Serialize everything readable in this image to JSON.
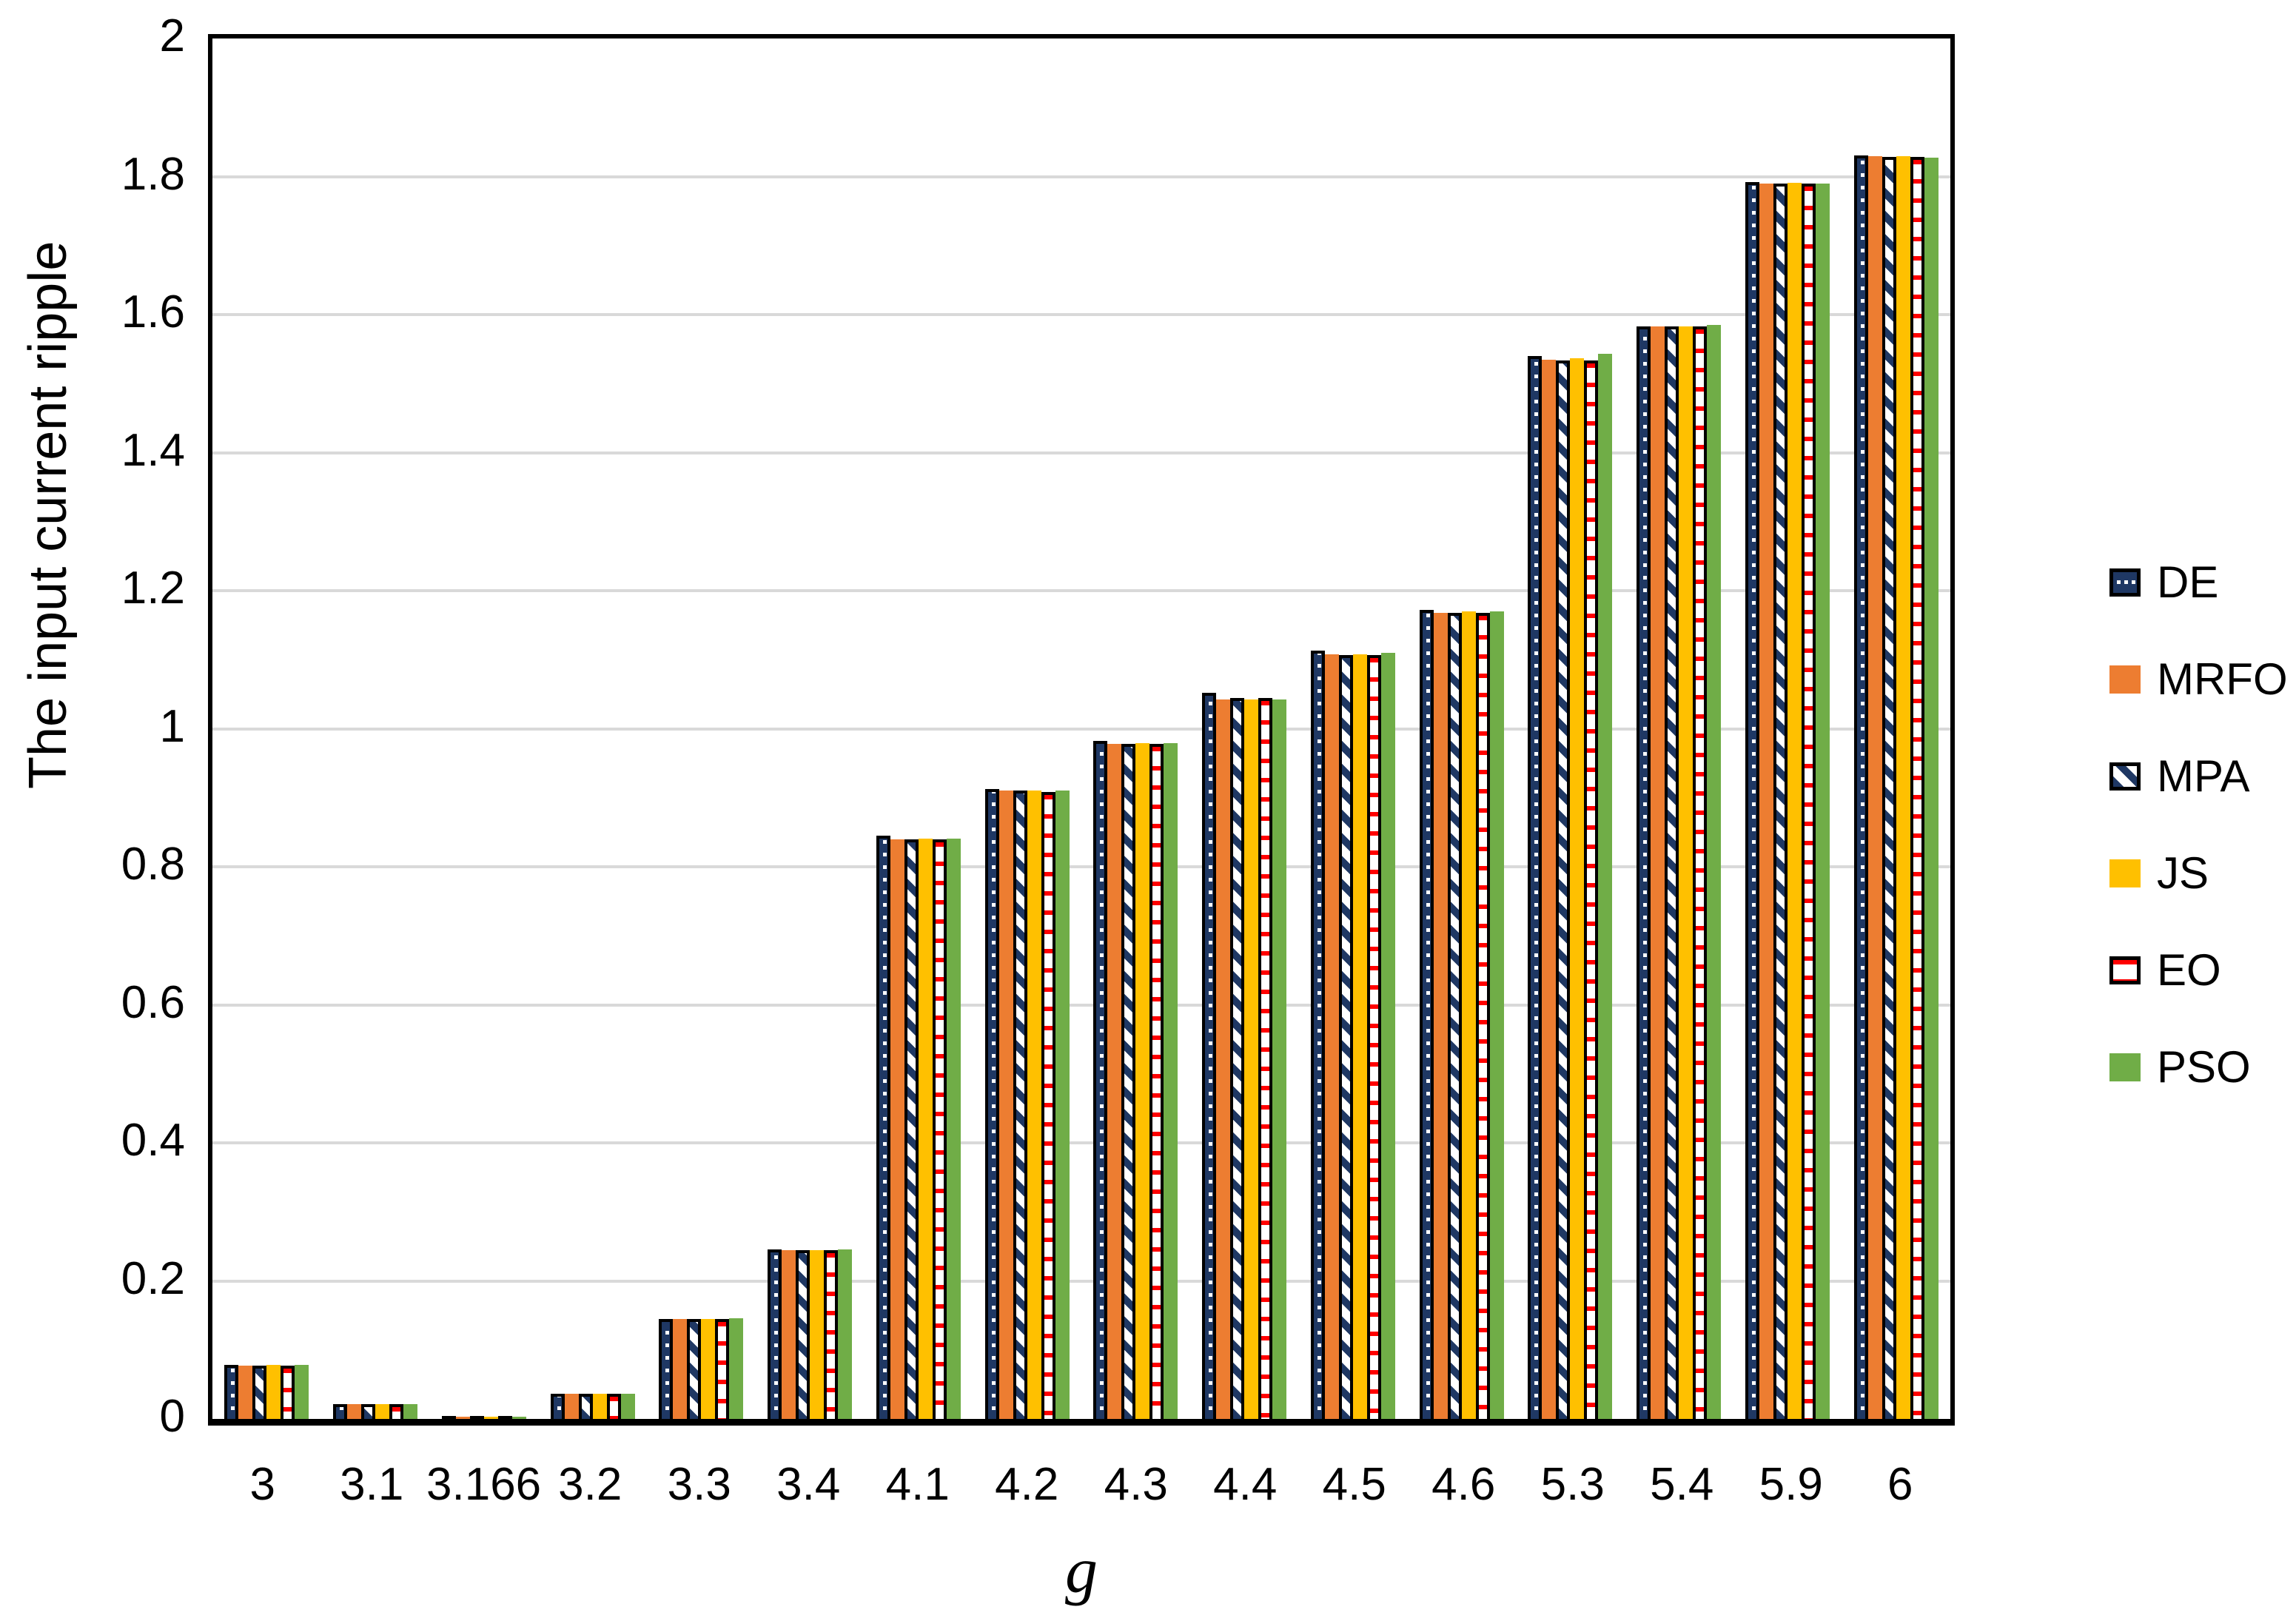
{
  "chart_data": {
    "type": "bar",
    "title": "",
    "xlabel": "g",
    "ylabel": "The input current ripple",
    "ylim": [
      0,
      2
    ],
    "ytick_step": 0.2,
    "grid": true,
    "legend_position": "right",
    "categories": [
      "3",
      "3.1",
      "3.166",
      "3.2",
      "3.3",
      "3.4",
      "4.1",
      "4.2",
      "4.3",
      "4.4",
      "4.5",
      "4.6",
      "5.3",
      "5.4",
      "5.9",
      "6"
    ],
    "series": [
      {
        "name": "DE",
        "style": "dots-navy",
        "color": "#1F3864",
        "border": "#000000",
        "values": [
          0.078,
          0.021,
          0.002,
          0.036,
          0.145,
          0.246,
          0.845,
          0.913,
          0.982,
          1.052,
          1.113,
          1.172,
          1.54,
          1.583,
          1.792,
          1.831
        ]
      },
      {
        "name": "MRFO",
        "style": "solid",
        "color": "#ED7D31",
        "border": null,
        "values": [
          0.077,
          0.021,
          0.002,
          0.036,
          0.145,
          0.245,
          0.84,
          0.91,
          0.978,
          1.042,
          1.108,
          1.168,
          1.535,
          1.583,
          1.79,
          1.829
        ]
      },
      {
        "name": "MPA",
        "style": "diag-navy",
        "color": "#1F3864",
        "border": "#000000",
        "values": [
          0.077,
          0.021,
          0.002,
          0.036,
          0.145,
          0.245,
          0.84,
          0.91,
          0.978,
          1.044,
          1.107,
          1.168,
          1.533,
          1.583,
          1.79,
          1.828
        ]
      },
      {
        "name": "JS",
        "style": "solid",
        "color": "#FFC000",
        "border": null,
        "values": [
          0.078,
          0.021,
          0.002,
          0.036,
          0.145,
          0.245,
          0.841,
          0.91,
          0.979,
          1.042,
          1.108,
          1.17,
          1.537,
          1.583,
          1.791,
          1.83
        ]
      },
      {
        "name": "EO",
        "style": "hstripe-red",
        "color": "#FF0000",
        "border": "#000000",
        "values": [
          0.077,
          0.021,
          0.002,
          0.036,
          0.145,
          0.245,
          0.84,
          0.908,
          0.978,
          1.044,
          1.107,
          1.168,
          1.533,
          1.583,
          1.79,
          1.828
        ]
      },
      {
        "name": "PSO",
        "style": "solid",
        "color": "#70AD47",
        "border": null,
        "values": [
          0.078,
          0.021,
          0.002,
          0.036,
          0.146,
          0.246,
          0.841,
          0.91,
          0.979,
          1.042,
          1.11,
          1.17,
          1.543,
          1.585,
          1.79,
          1.827
        ]
      }
    ],
    "ytick_labels": [
      "0",
      "0.2",
      "0.4",
      "0.6",
      "0.8",
      "1",
      "1.2",
      "1.4",
      "1.6",
      "1.8",
      "2"
    ],
    "gridline_color": "#D9D9D9",
    "axis_color": "#000000"
  }
}
